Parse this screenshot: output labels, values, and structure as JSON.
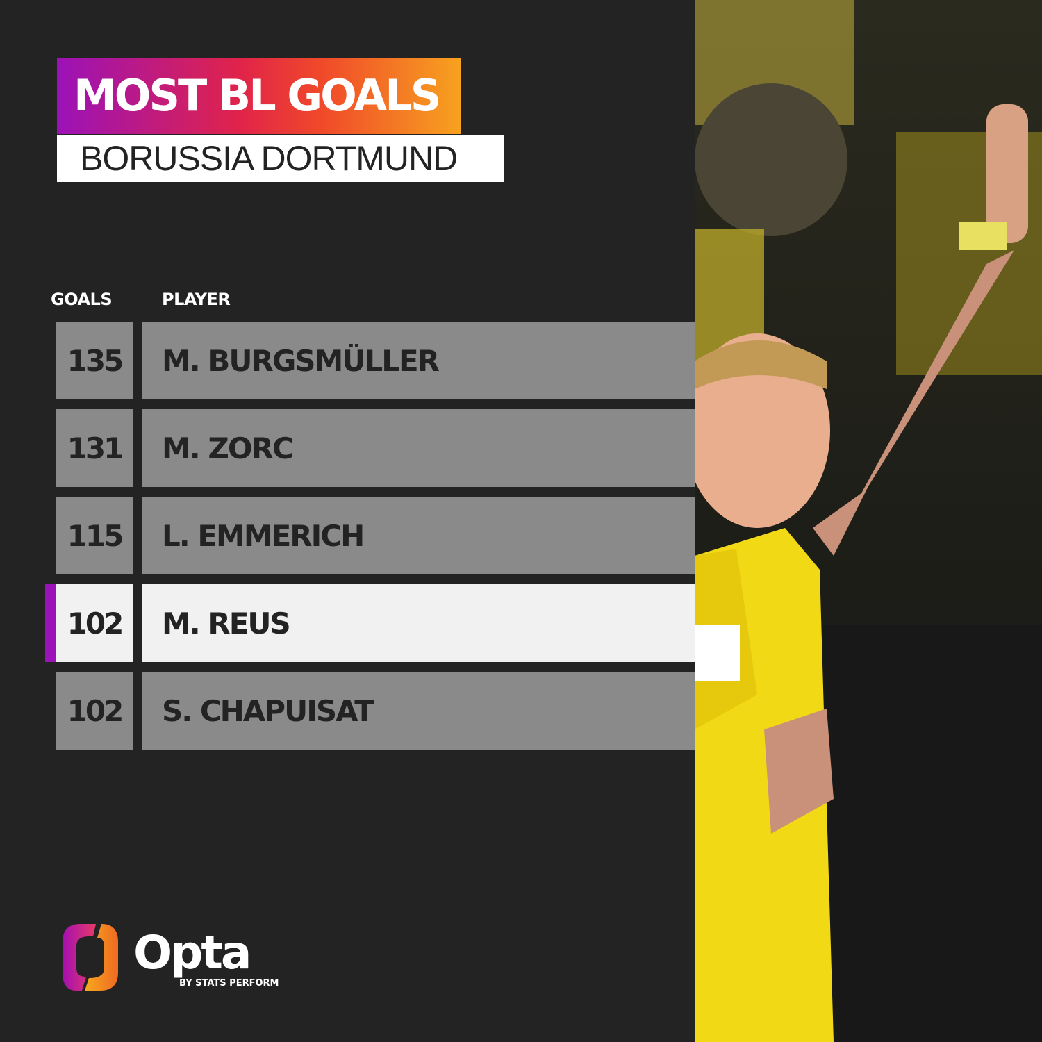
{
  "header": {
    "title": "MOST BL GOALS",
    "subtitle": "BORUSSIA DORTMUND"
  },
  "columns": {
    "goals": "GOALS",
    "player": "PLAYER"
  },
  "rows": [
    {
      "goals": "135",
      "player": "M. BURGSMÜLLER",
      "highlight": false
    },
    {
      "goals": "131",
      "player": "M. ZORC",
      "highlight": false
    },
    {
      "goals": "115",
      "player": "L. EMMERICH",
      "highlight": false
    },
    {
      "goals": "102",
      "player": "M. REUS",
      "highlight": true
    },
    {
      "goals": "102",
      "player": "S. CHAPUISAT",
      "highlight": false
    }
  ],
  "chart_data": {
    "type": "table",
    "title": "MOST BL GOALS",
    "subtitle": "BORUSSIA DORTMUND",
    "columns": [
      "GOALS",
      "PLAYER"
    ],
    "values": [
      [
        135,
        "M. BURGSMÜLLER"
      ],
      [
        131,
        "M. ZORC"
      ],
      [
        115,
        "L. EMMERICH"
      ],
      [
        102,
        "M. REUS"
      ],
      [
        102,
        "S. CHAPUISAT"
      ]
    ],
    "highlighted": "M. REUS"
  },
  "branding": {
    "name": "Opta",
    "byline": "BY STATS PERFORM"
  },
  "colors": {
    "background": "#232323",
    "row": "#8a8a8a",
    "highlight_row": "#f1f1f1",
    "accent": "#9b12b8",
    "gradient_end": "#f7a21f"
  }
}
